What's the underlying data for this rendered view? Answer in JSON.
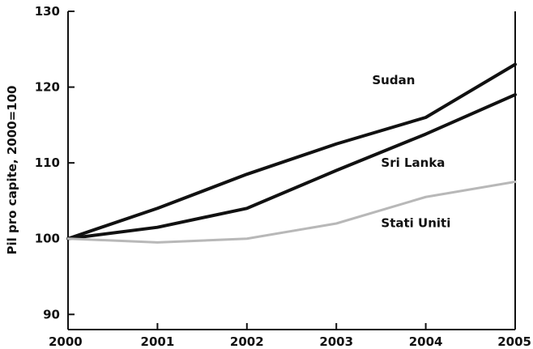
{
  "chart_data": {
    "type": "line",
    "title": "",
    "xlabel": "",
    "ylabel": "Pil pro capite, 2000=100",
    "x": [
      2000,
      2001,
      2002,
      2003,
      2004,
      2005
    ],
    "xticks": [
      "2000",
      "2001",
      "2002",
      "2003",
      "2004",
      "2005"
    ],
    "yticks": [
      "90",
      "100",
      "110",
      "120",
      "130"
    ],
    "ylim": [
      88,
      130
    ],
    "grid": false,
    "legend": "none",
    "series": [
      {
        "name": "Sudan",
        "values": [
          100,
          104,
          108.5,
          112.5,
          116,
          123
        ],
        "color": "#111111"
      },
      {
        "name": "Sri Lanka",
        "values": [
          100,
          101.5,
          104,
          109,
          113.8,
          119
        ],
        "color": "#111111"
      },
      {
        "name": "Stati Uniti",
        "values": [
          100,
          99.5,
          100,
          102,
          105.5,
          107.5
        ],
        "color": "#b8b8b8"
      }
    ]
  }
}
